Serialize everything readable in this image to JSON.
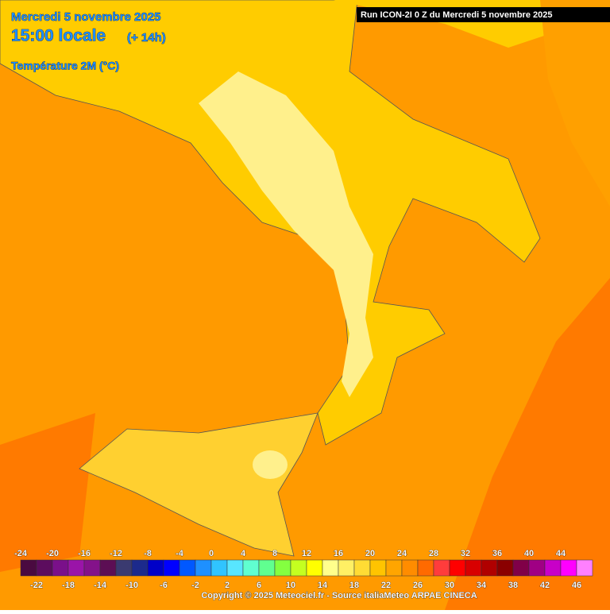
{
  "header": {
    "date": "Mercredi 5 novembre 2025",
    "time": "15:00 locale",
    "lead": "(+ 14h)",
    "variable": "Température 2M (°C)",
    "run": "Run ICON-2I 0 Z du Mercredi 5 novembre 2025"
  },
  "legend": {
    "ticks": [
      -24,
      -22,
      -20,
      -18,
      -16,
      -14,
      -12,
      -10,
      -8,
      -6,
      -4,
      -2,
      0,
      2,
      4,
      6,
      8,
      10,
      12,
      14,
      16,
      18,
      20,
      22,
      24,
      26,
      28,
      30,
      32,
      34,
      36,
      38,
      40,
      42,
      44,
      46
    ],
    "colors": [
      "#4a0a40",
      "#5c0c5e",
      "#7a108a",
      "#9a14a8",
      "#84128a",
      "#5c0e54",
      "#3a3a70",
      "#1c2a8c",
      "#0000c8",
      "#0000ff",
      "#0058ff",
      "#1e90ff",
      "#30c4ff",
      "#58e6ff",
      "#60ffd0",
      "#60ff90",
      "#84ff40",
      "#c4ff20",
      "#ffff00",
      "#ffff8c",
      "#fff064",
      "#ffdc34",
      "#ffc400",
      "#ffa500",
      "#ff8c00",
      "#ff6a00",
      "#ff3c3c",
      "#ff0000",
      "#d80000",
      "#b00000",
      "#8a0000",
      "#800048",
      "#a00084",
      "#c800c8",
      "#ff00ff",
      "#ff80ff"
    ]
  },
  "footer": {
    "copyright": "Copyright © 2025 Meteociel.fr - Source italiaMeteo ARPAE CINECA"
  }
}
